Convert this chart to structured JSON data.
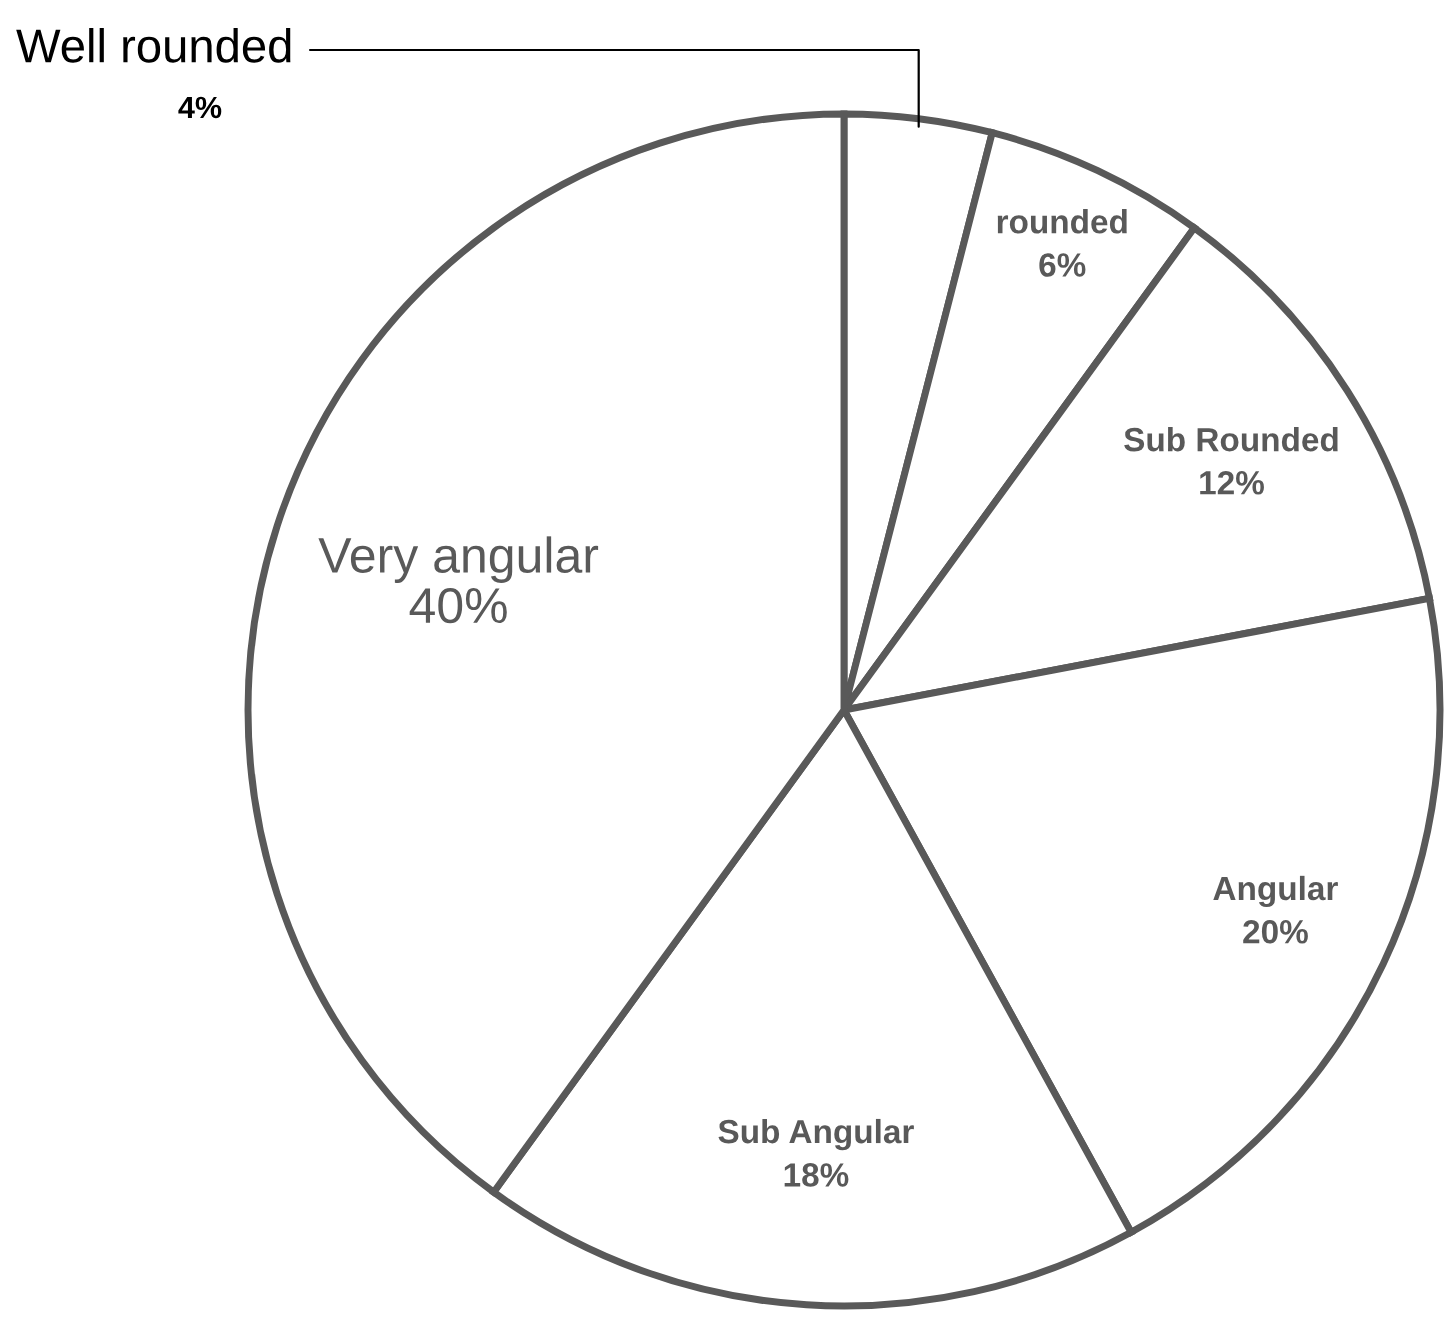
{
  "chart_data": {
    "type": "pie",
    "categories": [
      "Well rounded",
      "rounded",
      "Sub Rounded",
      "Angular",
      "Sub Angular",
      "Very angular"
    ],
    "values": [
      4,
      6,
      12,
      20,
      18,
      40
    ],
    "value_labels": [
      "4%",
      "6%",
      "12%",
      "20%",
      "18%",
      "40%"
    ],
    "colors": [
      "#ffffff",
      "#ffffff",
      "#ffffff",
      "#ffffff",
      "#ffffff",
      "#ffffff"
    ]
  }
}
